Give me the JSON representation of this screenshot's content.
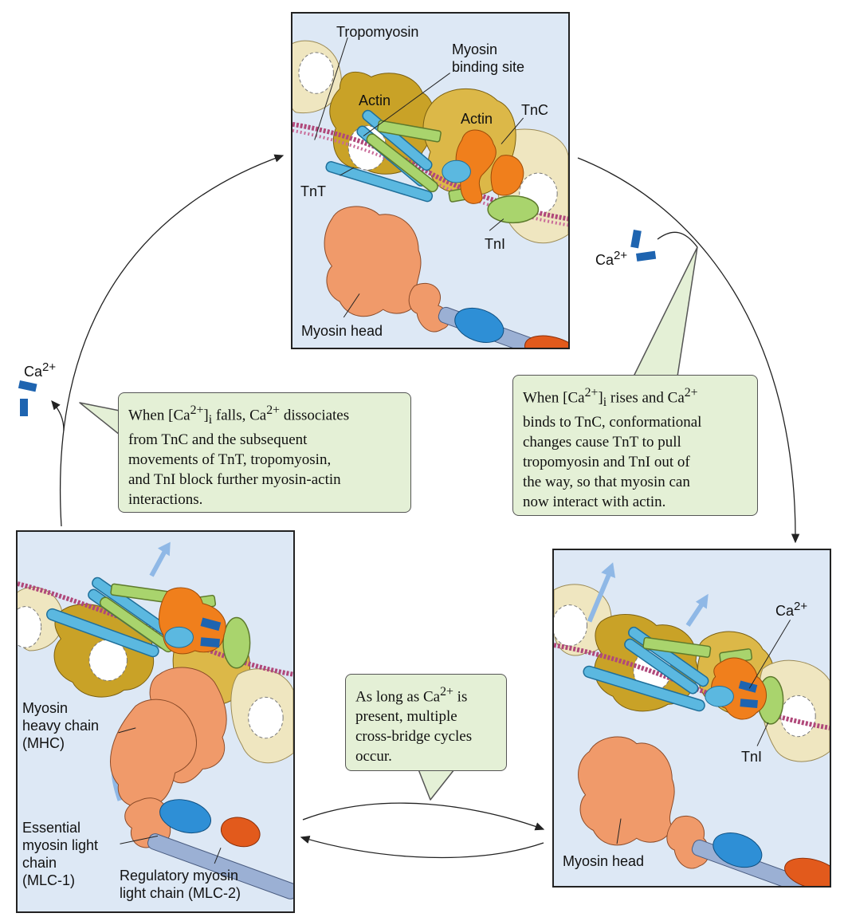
{
  "panel_top": {
    "labels": {
      "tropomyosin": "Tropomyosin",
      "myosin_binding_site": "Myosin\nbinding site",
      "actin_left": "Actin",
      "actin_right": "Actin",
      "tnc": "TnC",
      "tnt": "TnT",
      "tni": "TnI",
      "myosin_head": "Myosin head"
    }
  },
  "panel_left": {
    "labels": {
      "mhc": "Myosin\nheavy chain\n(MHC)",
      "mlc1": "Essential\nmyosin light\nchain\n(MLC-1)",
      "mlc2": "Regulatory myosin\nlight chain (MLC-2)"
    }
  },
  "panel_right": {
    "labels": {
      "ca": "Ca2+",
      "tni": "TnI",
      "myosin_head": "Myosin head"
    }
  },
  "callouts": {
    "falls": "When [Ca2+]i falls, Ca2+ dissociates\nfrom TnC and the subsequent\nmovements of TnT, tropomyosin,\nand TnI block further myosin-actin\ninteractions.",
    "rises": "When [Ca2+]i rises and Ca2+\nbinds to TnC, conformational\nchanges cause TnT to pull\ntropomyosin and TnI out of\nthe way, so that myosin can\nnow interact with actin.",
    "cycles": "As long as Ca2+ is\npresent, multiple\ncross-bridge cycles\noccur."
  },
  "free_ions": {
    "left": "Ca2+",
    "right": "Ca2+"
  },
  "colors": {
    "panel_bg": "#dde8f5",
    "actin_dark": "#c9a227",
    "actin_light": "#e9dcae",
    "tropomyosin": "#b0487a",
    "tnc": "#f07f1c",
    "tnt": "#5bb8e0",
    "tni": "#a9d46d",
    "myosin": "#f09a6a",
    "elc": "#2e8fd6",
    "rlc": "#e25a1c",
    "calcium": "#1e64b0",
    "callout_bg": "#e4f0d6"
  }
}
